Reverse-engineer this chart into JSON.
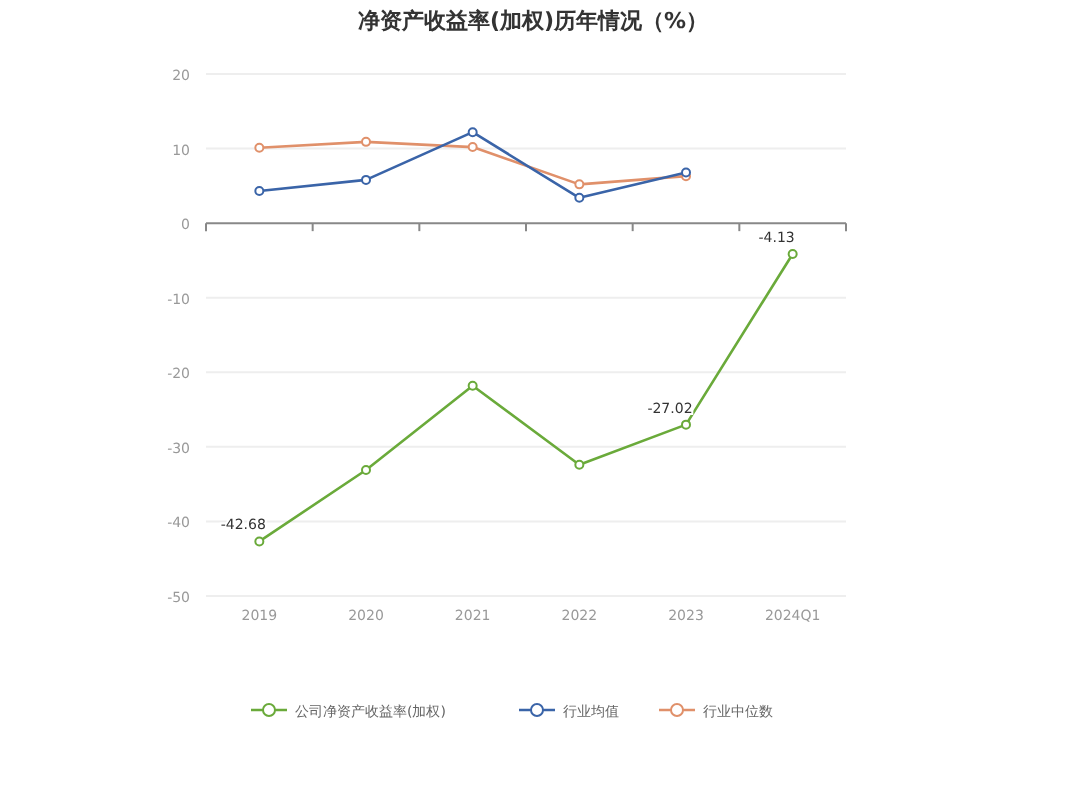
{
  "chart_data": {
    "type": "line",
    "title": "净资产收益率(加权)历年情况（%）",
    "categories": [
      "2019",
      "2020",
      "2021",
      "2022",
      "2023",
      "2024Q1"
    ],
    "series": [
      {
        "name": "公司净资产收益率(加权)",
        "color": "#6aaa3a",
        "values": [
          -42.68,
          -33.1,
          -21.8,
          -32.4,
          -27.02,
          -4.13
        ],
        "value_labels": [
          "-42.68",
          null,
          null,
          null,
          "-27.02",
          "-4.13"
        ]
      },
      {
        "name": "行业均值",
        "color": "#3a64a8",
        "values": [
          4.3,
          5.8,
          12.2,
          3.4,
          6.8,
          null
        ]
      },
      {
        "name": "行业中位数",
        "color": "#e0906a",
        "values": [
          10.1,
          10.9,
          10.2,
          5.2,
          6.3,
          null
        ]
      }
    ],
    "ylim": [
      -50,
      20
    ],
    "yticks": [
      -50,
      -40,
      -30,
      -20,
      -10,
      0,
      10,
      20
    ],
    "grid": "y",
    "legend": "bottom",
    "marker": "circle",
    "line_style": "solid"
  }
}
